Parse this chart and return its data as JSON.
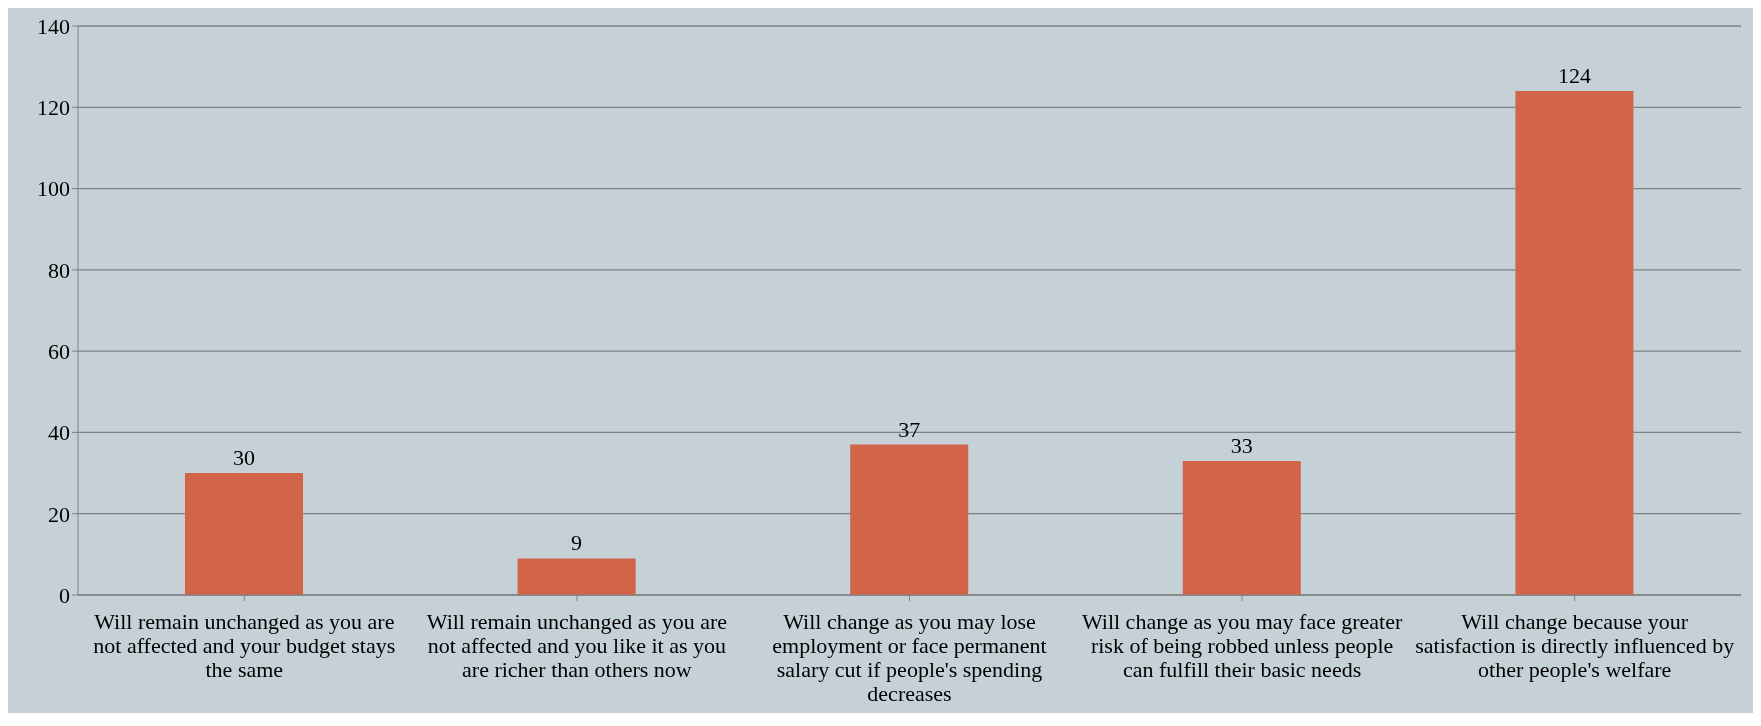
{
  "chart_data": {
    "type": "bar",
    "categories": [
      "Will remain unchanged as you are not affected and your budget stays the same",
      "Will remain unchanged as you are not affected and you like it as you are richer than others now",
      "Will change as you may lose employment or face permanent salary cut if people's spending decreases",
      "Will change as you may face greater risk of being robbed unless people can fulfill their basic needs",
      "Will change because your satisfaction is directly influenced by other people's welfare"
    ],
    "values": [
      30,
      9,
      37,
      33,
      124
    ],
    "color": "#d2644a",
    "ylim": [
      0,
      140
    ],
    "yticks": [
      0,
      20,
      40,
      60,
      80,
      100,
      120,
      140
    ],
    "grid": "y",
    "legend": false,
    "data_labels": true
  }
}
